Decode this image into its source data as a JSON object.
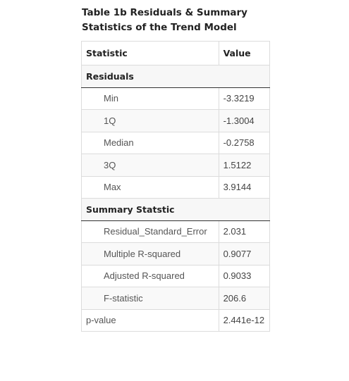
{
  "caption": {
    "line1": "Table 1b Residuals & Summary",
    "line2": "Statistics of the Trend Model"
  },
  "table": {
    "headers": {
      "statistic": "Statistic",
      "value": "Value"
    },
    "groups": [
      {
        "label": "Residuals",
        "rows": [
          {
            "statistic": "Min",
            "value": "-3.3219"
          },
          {
            "statistic": "1Q",
            "value": "-1.3004"
          },
          {
            "statistic": "Median",
            "value": "-0.2758"
          },
          {
            "statistic": "3Q",
            "value": "1.5122"
          },
          {
            "statistic": "Max",
            "value": "3.9144"
          }
        ]
      },
      {
        "label": "Summary Statstic",
        "rows": [
          {
            "statistic": "Residual_Standard_Error",
            "value": "2.031"
          },
          {
            "statistic": "Multiple R-squared",
            "value": "0.9077"
          },
          {
            "statistic": "Adjusted R-squared",
            "value": "0.9033"
          },
          {
            "statistic": "F-statistic",
            "value": "206.6"
          }
        ]
      }
    ],
    "footer_row": {
      "statistic": "p-value",
      "value": "2.441e-12"
    }
  }
}
